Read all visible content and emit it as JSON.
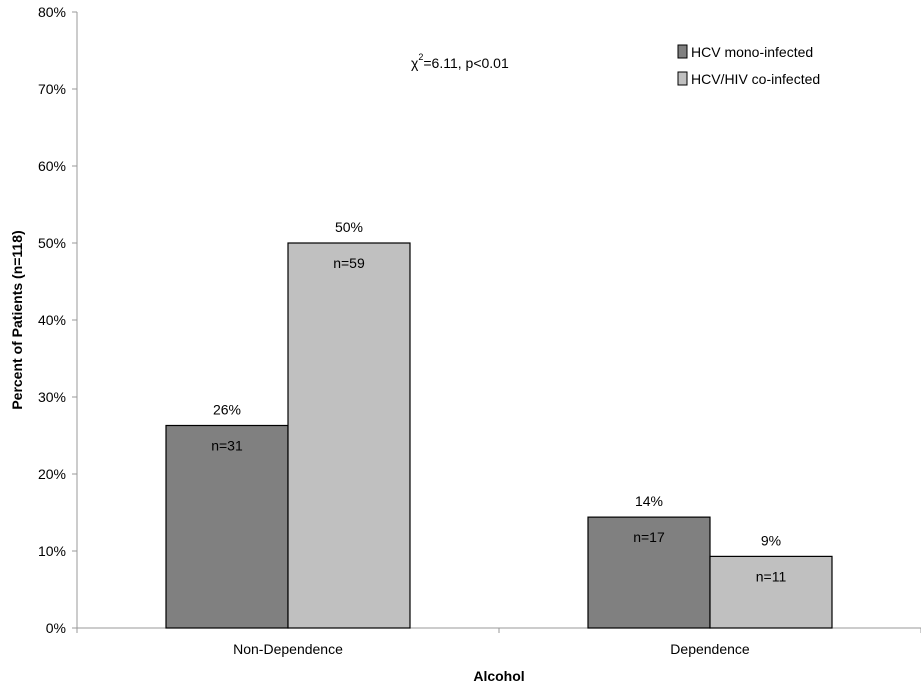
{
  "chart_data": {
    "type": "bar",
    "title": "",
    "xlabel": "Alcohol",
    "ylabel": "Percent of Patients (n=118)",
    "categories": [
      "Non-Dependence",
      "Dependence"
    ],
    "series": [
      {
        "name": "HCV mono-infected",
        "color": "#808080",
        "values": [
          26.3,
          14.4
        ],
        "labels": [
          "26%",
          "14%"
        ],
        "counts": [
          "n=31",
          "n=17"
        ]
      },
      {
        "name": "HCV/HIV co-infected",
        "color": "#c0c0c0",
        "values": [
          50,
          9.3
        ],
        "labels": [
          "50%",
          "9%"
        ],
        "counts": [
          "n=59",
          "n=11"
        ]
      }
    ],
    "ylim": [
      0,
      80
    ],
    "yticks": [
      "0%",
      "10%",
      "20%",
      "30%",
      "40%",
      "50%",
      "60%",
      "70%",
      "80%"
    ],
    "grid": false,
    "legend_position": "top-right",
    "annotation": {
      "prefix": "χ",
      "superscript": "2",
      "text": "=6.11, p<0.01"
    }
  }
}
